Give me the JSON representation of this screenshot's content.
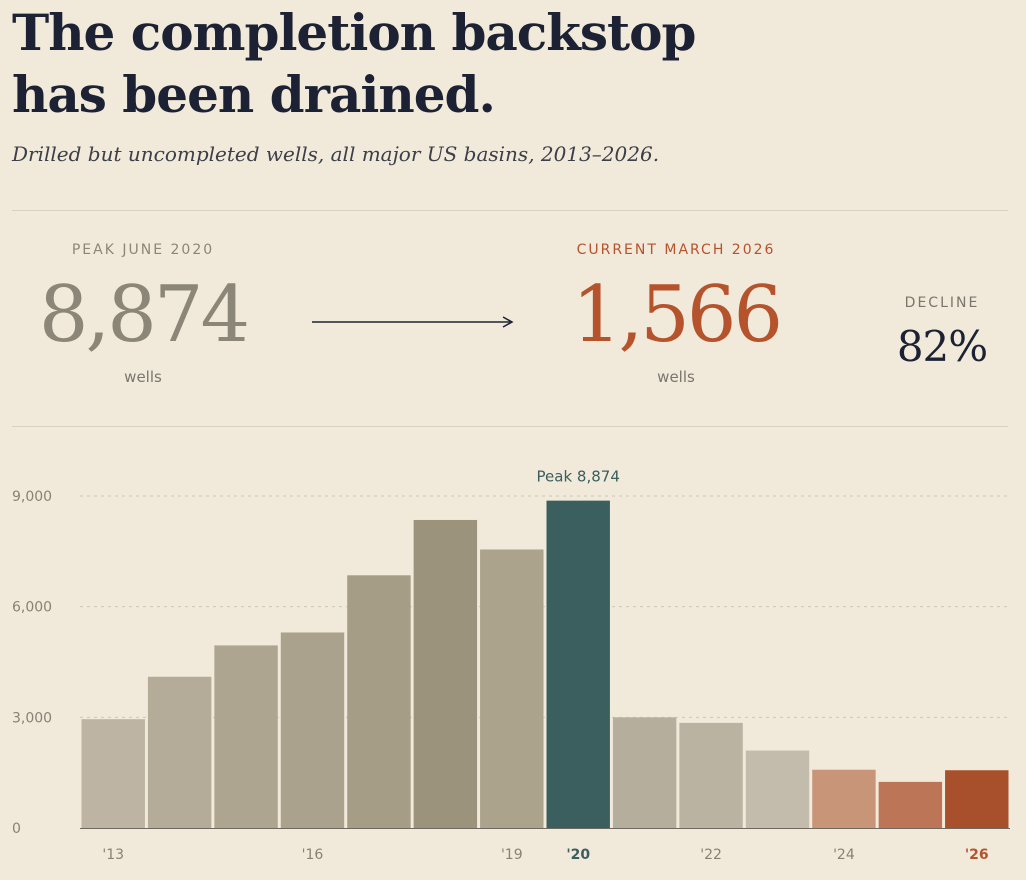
{
  "header": {
    "title_line1": "The completion backstop",
    "title_line2": "has been drained.",
    "subtitle": "Drilled but uncompleted wells, all major US basins, 2013–2026."
  },
  "stats": {
    "peak_label": "PEAK JUNE 2020",
    "peak_value": "8,874",
    "peak_unit": "wells",
    "current_label": "CURRENT MARCH 2026",
    "current_value": "1,566",
    "current_unit": "wells",
    "decline_label": "DECLINE",
    "decline_value": "82%"
  },
  "colors": {
    "background": "#f1e9da",
    "accent_rust": "#b5532c",
    "peak_teal": "#3b5e5e",
    "text_dark": "#1c2233",
    "muted": "#8c8679"
  },
  "chart_data": {
    "type": "bar",
    "title": "",
    "xlabel": "",
    "ylabel": "",
    "ylim": [
      0,
      9000
    ],
    "yticks": [
      0,
      3000,
      6000,
      9000
    ],
    "ytick_labels": [
      "0",
      "3,000",
      "6,000",
      "9,000"
    ],
    "grid": true,
    "categories": [
      "2013",
      "2014",
      "2015",
      "2016",
      "2017",
      "2018",
      "2019",
      "2020",
      "2021",
      "2022",
      "2023",
      "2024",
      "2025",
      "2026"
    ],
    "xtick_labels": [
      "'13",
      "",
      "",
      "'16",
      "",
      "",
      "'19",
      "'20",
      "",
      "'22",
      "",
      "'24",
      "",
      "'26"
    ],
    "values": [
      2950,
      4100,
      4950,
      5300,
      6850,
      8350,
      7550,
      8874,
      3000,
      2850,
      2100,
      1580,
      1250,
      1566
    ],
    "bar_colors": [
      "#bdb4a3",
      "#b4ab98",
      "#aea591",
      "#aba28d",
      "#a69d87",
      "#9c937d",
      "#aca38d",
      "#3b5e5e",
      "#b6ae9c",
      "#bbb3a2",
      "#c3bcac",
      "#c99579",
      "#bc7556",
      "#a84f2c"
    ],
    "annotation": {
      "text": "Peak 8,874",
      "category": "2020",
      "value": 8874,
      "color": "#3b5e5e"
    },
    "highlight_ticks": {
      "2020": "#3b5e5e",
      "2026": "#b5532c"
    }
  }
}
